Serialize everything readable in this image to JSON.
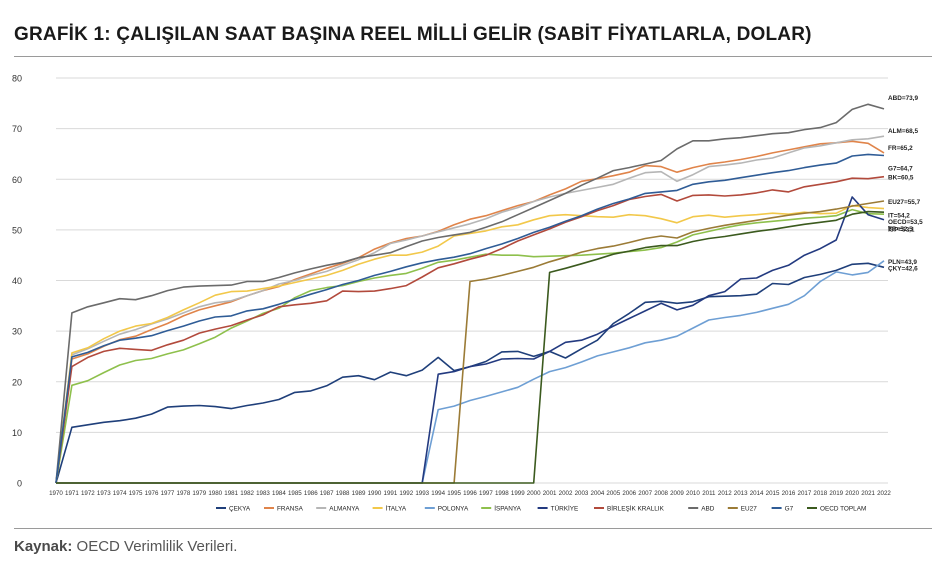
{
  "header": {
    "title": "GRAFİK 1: ÇALIŞILAN SAAT BAŞINA REEL MİLLİ GELİR (SABİT FİYATLARLA, DOLAR)"
  },
  "footer": {
    "source_label": "Kaynak:",
    "source_text": " OECD Verimlilik Verileri."
  },
  "chart_data": {
    "type": "line",
    "title": "GRAFİK 1: ÇALIŞILAN SAAT BAŞINA REEL MİLLİ GELİR (SABİT FİYATLARLA, DOLAR)",
    "xlabel": "",
    "ylabel": "",
    "ylim": [
      0,
      80
    ],
    "yticks": [
      0,
      10,
      20,
      30,
      40,
      50,
      60,
      70,
      80
    ],
    "grid": true,
    "legend_position": "bottom",
    "x": [
      1970,
      1971,
      1972,
      1973,
      1974,
      1975,
      1976,
      1977,
      1978,
      1979,
      1980,
      1981,
      1982,
      1983,
      1984,
      1985,
      1986,
      1987,
      1988,
      1989,
      1990,
      1991,
      1992,
      1993,
      1994,
      1995,
      1996,
      1997,
      1998,
      1999,
      2000,
      2001,
      2002,
      2003,
      2004,
      2005,
      2006,
      2007,
      2008,
      2009,
      2010,
      2011,
      2012,
      2013,
      2014,
      2015,
      2016,
      2017,
      2018,
      2019,
      2020,
      2021,
      2022
    ],
    "series": [
      {
        "name": "ÇEKYA",
        "color": "#1f3f7a",
        "end_label": "ÇKY=42,6",
        "values": [
          0,
          11,
          11.5,
          12,
          12.3,
          12.8,
          13.6,
          15,
          15.2,
          15.3,
          15.1,
          14.7,
          15.3,
          15.8,
          16.5,
          17.9,
          18.2,
          19.2,
          20.9,
          21.2,
          20.4,
          21.9,
          21.2,
          22.3,
          24.8,
          22.2,
          23,
          24,
          25.9,
          26,
          25,
          26,
          24.7,
          26.5,
          28.2,
          31.5,
          33.5,
          35.7,
          35.9,
          35.5,
          35.8,
          36.8,
          36.9,
          37,
          37.3,
          39.4,
          39.2,
          40.6,
          41.2,
          42,
          43.2,
          43.4,
          42.6
        ]
      },
      {
        "name": "FRANSA",
        "color": "#e0844a",
        "end_label": "FR=65,2",
        "values": [
          0,
          24.5,
          25.5,
          27,
          28.3,
          29,
          30.3,
          31.5,
          33,
          34.2,
          35,
          35.8,
          37,
          38,
          38.8,
          40.2,
          41.3,
          42.4,
          43.4,
          44.5,
          46.2,
          47.4,
          48.3,
          48.8,
          49.7,
          51,
          52.1,
          52.8,
          53.8,
          54.8,
          55.6,
          56.9,
          58.1,
          59.6,
          60.1,
          60.7,
          61.4,
          62.7,
          62.5,
          61.4,
          62.3,
          63,
          63.4,
          63.9,
          64.5,
          65.2,
          65.8,
          66.4,
          67,
          67.2,
          67.5,
          67.1,
          65.2
        ]
      },
      {
        "name": "ALMANYA",
        "color": "#b6b6b6",
        "end_label": "ALM=68,5",
        "values": [
          0,
          25.3,
          26.5,
          28,
          29.4,
          30.3,
          31.4,
          32.4,
          33.6,
          34.8,
          35.6,
          36,
          37,
          38,
          39.3,
          40,
          41,
          41.8,
          43,
          44.1,
          45.5,
          47.3,
          48,
          48.8,
          49.6,
          50.4,
          51.2,
          52.2,
          53.5,
          54.4,
          55.6,
          56.5,
          57.2,
          57.8,
          58.4,
          59,
          60.2,
          61.3,
          61.5,
          59.6,
          60.9,
          62.5,
          62.8,
          63.2,
          63.8,
          64.2,
          65.2,
          66.2,
          66.6,
          67.2,
          67.8,
          68,
          68.5
        ]
      },
      {
        "name": "İTALYA",
        "color": "#f2c84a",
        "end_label": "IT=54,2",
        "values": [
          0,
          25.7,
          26.7,
          28.5,
          30,
          31,
          31.5,
          32.7,
          34.2,
          35.6,
          37.1,
          37.8,
          37.9,
          38.4,
          38.9,
          39.6,
          40.3,
          41,
          42,
          43.2,
          44.2,
          45,
          45,
          45.6,
          46.8,
          48.8,
          49.3,
          49.8,
          50.6,
          51,
          52,
          52.8,
          53,
          52.8,
          52.6,
          52.5,
          53,
          52.8,
          52.2,
          51.4,
          52.6,
          52.9,
          52.5,
          52.8,
          53,
          53.3,
          53.1,
          53.5,
          53.2,
          53.3,
          54.8,
          54.4,
          54.2
        ]
      },
      {
        "name": "POLONYA",
        "color": "#6e9fd4",
        "end_label": "PLN=43,9",
        "values": [
          0,
          0,
          0,
          0,
          0,
          0,
          0,
          0,
          0,
          0,
          0,
          0,
          0,
          0,
          0,
          0,
          0,
          0,
          0,
          0,
          0,
          0,
          0,
          0,
          14.5,
          15.2,
          16.3,
          17.1,
          18,
          18.9,
          20.5,
          22,
          22.8,
          23.9,
          25.1,
          25.9,
          26.7,
          27.7,
          28.2,
          29,
          30.6,
          32.2,
          32.7,
          33.1,
          33.7,
          34.5,
          35.3,
          37,
          39.8,
          41.7,
          41.1,
          41.6,
          43.9
        ]
      },
      {
        "name": "İSPANYA",
        "color": "#8ec04c",
        "end_label": "İSP=53,1",
        "values": [
          0,
          19.3,
          20.2,
          21.8,
          23.3,
          24.2,
          24.6,
          25.5,
          26.3,
          27.5,
          28.8,
          30.6,
          32,
          33.5,
          34.5,
          36.6,
          38,
          38.6,
          39,
          39.8,
          40.5,
          41,
          41.4,
          42.4,
          43.6,
          44,
          44.6,
          45.2,
          45,
          45,
          44.7,
          44.8,
          44.9,
          45,
          45.2,
          45.4,
          45.7,
          46,
          46.5,
          47.6,
          49,
          49.7,
          50.4,
          51,
          51.4,
          51.7,
          52,
          52.3,
          52.5,
          52.8,
          54,
          53.2,
          53.1
        ]
      },
      {
        "name": "TÜRKİYE",
        "color": "#233a80",
        "end_label": "",
        "values": [
          0,
          0,
          0,
          0,
          0,
          0,
          0,
          0,
          0,
          0,
          0,
          0,
          0,
          0,
          0,
          0,
          0,
          0,
          0,
          0,
          0,
          0,
          0,
          0,
          21.5,
          22,
          23,
          23.5,
          24.5,
          24.6,
          24.5,
          26,
          27.8,
          28.2,
          29.4,
          31,
          32.5,
          34,
          35.5,
          34.2,
          35.1,
          37,
          37.8,
          40.3,
          40.5,
          42,
          43,
          45,
          46.3,
          48,
          56.5,
          53,
          52
        ]
      },
      {
        "name": "BİRLEŞİK KRALLIK",
        "color": "#b24a3c",
        "end_label": "BK=60,5",
        "values": [
          0,
          23,
          24.8,
          26,
          26.6,
          26.4,
          26.2,
          27.3,
          28.2,
          29.6,
          30.4,
          31.1,
          32.2,
          33.2,
          34.8,
          35.2,
          35.5,
          36,
          37.9,
          37.8,
          37.9,
          38.4,
          39,
          40.7,
          42.5,
          43.3,
          44.2,
          45,
          46.3,
          47.8,
          49,
          50.2,
          51.5,
          52.6,
          53.8,
          54.8,
          56,
          56.6,
          57,
          55.7,
          56.8,
          56.9,
          56.7,
          56.9,
          57.3,
          57.9,
          57.5,
          58.5,
          59,
          59.5,
          60.2,
          60.1,
          60.5
        ]
      },
      {
        "name": "ABD",
        "color": "#6b6b6b",
        "end_label": "ABD=73,9",
        "values": [
          0,
          33.6,
          34.8,
          35.6,
          36.4,
          36.2,
          37,
          38,
          38.7,
          38.9,
          39,
          39.1,
          39.8,
          39.8,
          40.6,
          41.5,
          42.3,
          43,
          43.6,
          44.5,
          45,
          45.5,
          46.7,
          47.8,
          48.5,
          49,
          49.5,
          50.5,
          51.6,
          53,
          54.4,
          55.8,
          57.2,
          58.8,
          60.2,
          61.7,
          62.3,
          63,
          63.7,
          66,
          67.6,
          67.6,
          68,
          68.2,
          68.6,
          69,
          69.2,
          69.8,
          70.2,
          71.2,
          73.8,
          74.8,
          73.9
        ]
      },
      {
        "name": "EU27",
        "color": "#9b7b36",
        "end_label": "EU27=55,7",
        "values": [
          0,
          0,
          0,
          0,
          0,
          0,
          0,
          0,
          0,
          0,
          0,
          0,
          0,
          0,
          0,
          0,
          0,
          0,
          0,
          0,
          0,
          0,
          0,
          0,
          0,
          0,
          39.8,
          40.3,
          41,
          41.8,
          42.6,
          43.7,
          44.6,
          45.6,
          46.3,
          46.8,
          47.5,
          48.3,
          48.8,
          48.4,
          49.6,
          50.3,
          50.9,
          51.4,
          51.9,
          52.4,
          52.9,
          53.3,
          53.6,
          54.1,
          54.7,
          55.2,
          55.7
        ]
      },
      {
        "name": "G7",
        "color": "#2f5c96",
        "end_label": "G7=64,7",
        "values": [
          0,
          24.9,
          25.8,
          27.1,
          28.2,
          28.6,
          29.1,
          30.1,
          31,
          32,
          32.8,
          33,
          34,
          34.4,
          35.3,
          36.3,
          37.3,
          38.2,
          39.2,
          40,
          41,
          41.8,
          42.7,
          43.5,
          44.1,
          44.6,
          45.3,
          46.3,
          47.2,
          48.3,
          49.5,
          50.5,
          51.7,
          52.8,
          54.1,
          55.2,
          56.1,
          57.2,
          57.5,
          57.8,
          59,
          59.5,
          59.8,
          60.3,
          60.8,
          61.3,
          61.7,
          62.3,
          62.8,
          63.2,
          64.6,
          64.9,
          64.7
        ]
      },
      {
        "name": "OECD TOPLAM",
        "color": "#3b5a1e",
        "end_label": "OECD=53,5",
        "values": [
          0,
          0,
          0,
          0,
          0,
          0,
          0,
          0,
          0,
          0,
          0,
          0,
          0,
          0,
          0,
          0,
          0,
          0,
          0,
          0,
          0,
          0,
          0,
          0,
          0,
          0,
          0,
          0,
          0,
          0,
          0,
          41.6,
          42.4,
          43.3,
          44.2,
          45.2,
          45.8,
          46.5,
          46.9,
          46.9,
          47.7,
          48.3,
          48.7,
          49.2,
          49.7,
          50.1,
          50.6,
          51.1,
          51.5,
          51.9,
          53.1,
          53.6,
          53.5
        ]
      }
    ]
  }
}
